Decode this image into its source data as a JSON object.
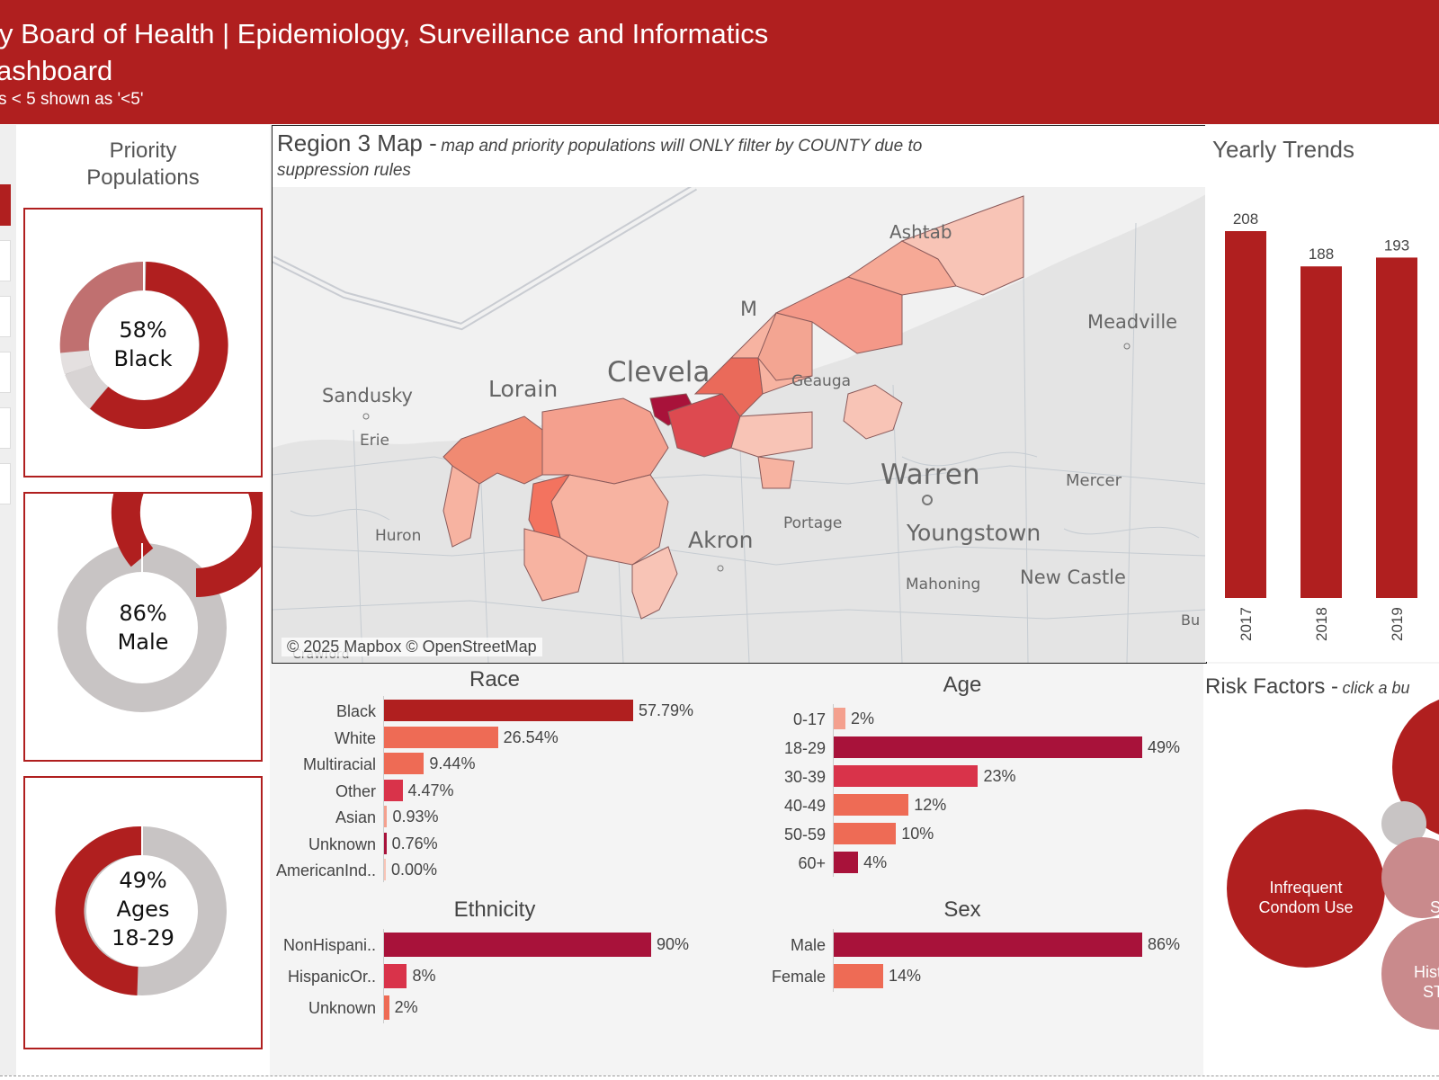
{
  "header": {
    "title_line1": "y Board of Health | Epidemiology, Surveillance and Informatics",
    "title_line2": "ashboard",
    "note": "s < 5 shown as '<5'"
  },
  "priority": {
    "title_line1": "Priority",
    "title_line2": "Populations",
    "cards": [
      {
        "line1": "58%",
        "line2": "Black",
        "line3": "",
        "value": 0.58
      },
      {
        "line1": "86%",
        "line2": "Male",
        "line3": "",
        "value": 0.86
      },
      {
        "line1": "49%",
        "line2": "Ages",
        "line3": "18-29",
        "value": 0.49
      }
    ]
  },
  "map": {
    "title_bold": "Region 3 Map -",
    "title_italic": "map and priority populations will ONLY filter by COUNTY due to suppression rules",
    "attribution": "© 2025 Mapbox © OpenStreetMap",
    "places": [
      "Ashtab",
      "Meadville",
      "Lorain",
      "Clevela",
      "Sandusky",
      "Erie",
      "Geauga",
      "Warren",
      "Mercer",
      "Huron",
      "Portage",
      "Akron",
      "Youngstown",
      "Mahoning",
      "New Castle",
      "Crawford",
      "M",
      "Bu"
    ]
  },
  "trends": {
    "title": "Yearly Trends"
  },
  "risk": {
    "title_bold": "Risk Factors -",
    "title_italic": "click a bu",
    "bubbles": [
      "Infrequent Condom Use",
      "History STD",
      "S"
    ]
  },
  "colors": {
    "brand_red": "#b01f1f",
    "dark_crimson": "#a8123a",
    "mid_red": "#d9334a",
    "salmon": "#ee6b55",
    "light_salmon": "#f4a08e",
    "pale": "#f8c4b6",
    "grey": "#c8c4c4"
  },
  "chart_data": [
    {
      "type": "bar",
      "title": "Yearly Trends",
      "categories": [
        "2017",
        "2018",
        "2019"
      ],
      "values": [
        208,
        188,
        193
      ],
      "ylim": [
        0,
        208
      ]
    },
    {
      "type": "bar",
      "title": "Race",
      "categories": [
        "Black",
        "White",
        "Multiracial",
        "Other",
        "Asian",
        "Unknown",
        "AmericanInd.."
      ],
      "values": [
        57.79,
        26.54,
        9.44,
        4.47,
        0.93,
        0.76,
        0.0
      ],
      "labels": [
        "57.79%",
        "26.54%",
        "9.44%",
        "4.47%",
        "0.93%",
        "0.76%",
        "0.00%"
      ]
    },
    {
      "type": "bar",
      "title": "Age",
      "categories": [
        "0-17",
        "18-29",
        "30-39",
        "40-49",
        "50-59",
        "60+"
      ],
      "values": [
        2,
        49,
        23,
        12,
        10,
        4
      ],
      "labels": [
        "2%",
        "49%",
        "23%",
        "12%",
        "10%",
        "4%"
      ]
    },
    {
      "type": "bar",
      "title": "Ethnicity",
      "categories": [
        "NonHispani..",
        "HispanicOr..",
        "Unknown"
      ],
      "values": [
        90,
        8,
        2
      ],
      "labels": [
        "90%",
        "8%",
        "2%"
      ]
    },
    {
      "type": "bar",
      "title": "Sex",
      "categories": [
        "Male",
        "Female"
      ],
      "values": [
        86,
        14
      ],
      "labels": [
        "86%",
        "14%"
      ]
    }
  ]
}
